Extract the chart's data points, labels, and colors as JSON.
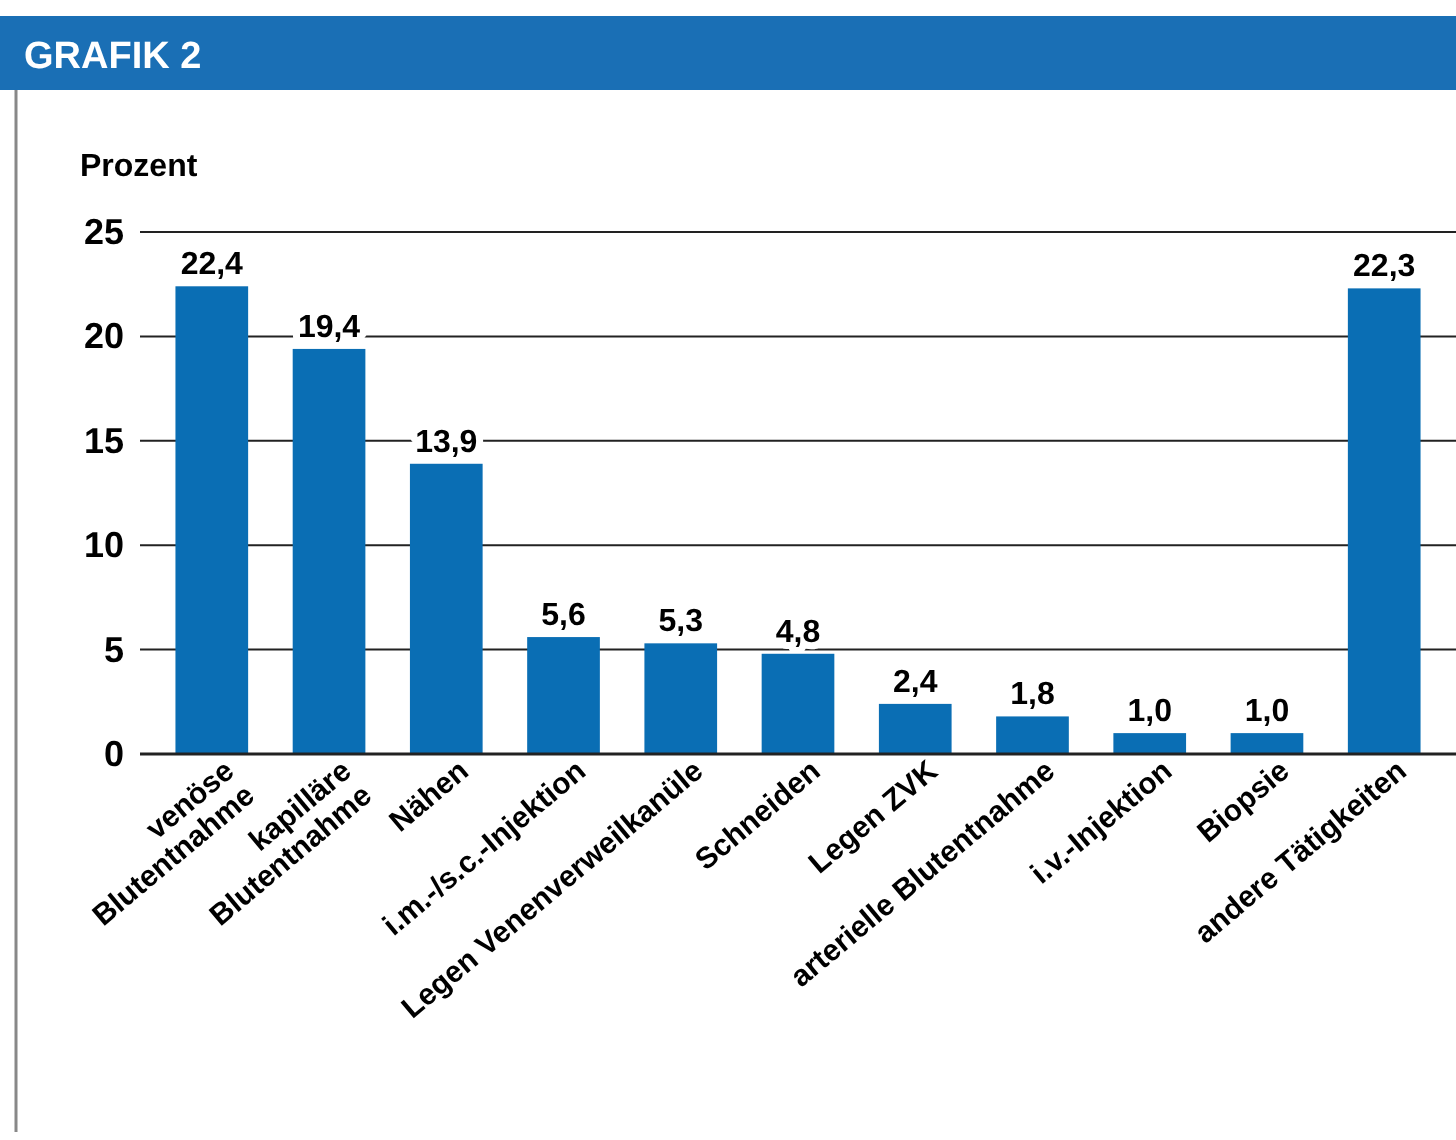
{
  "chart_data": {
    "type": "bar",
    "title": "GRAFIK 2",
    "ylabel": "Prozent",
    "categories": [
      "venöse\nBlutentnahme",
      "kapilläre\nBlutentnahme",
      "Nähen",
      "i.m.-/s.c.-Injektion",
      "Legen Venenverweilkanüle",
      "Schneiden",
      "Legen ZVK",
      "arterielle Blutentnahme",
      "i.v.-Injektion",
      "Biopsie",
      "andere Tätigkeiten"
    ],
    "values": [
      22.4,
      19.4,
      13.9,
      5.6,
      5.3,
      4.8,
      2.4,
      1.8,
      1.0,
      1.0,
      22.3
    ],
    "value_labels": [
      "22,4",
      "19,4",
      "13,9",
      "5,6",
      "5,3",
      "4,8",
      "2,4",
      "1,8",
      "1,0",
      "1,0",
      "22,3"
    ],
    "color": "#0a6eb4",
    "ylim": [
      0,
      25
    ],
    "yticks": [
      0,
      5,
      10,
      15,
      20,
      25
    ],
    "grid": "y"
  }
}
